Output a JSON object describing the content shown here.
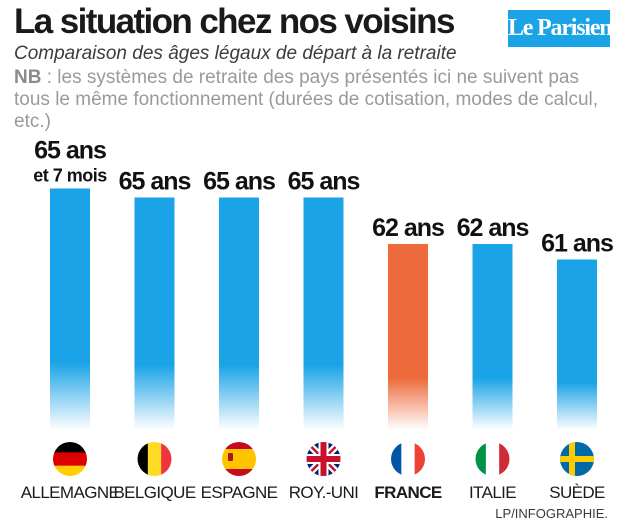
{
  "title": "La situation chez nos voisins",
  "subtitle": "Comparaison des âges légaux de départ à la retraite",
  "note": {
    "prefix": "NB",
    "text": " : les systèmes de retraite des pays présentés ici ne suivent pas tous le même fonctionnement (durées de cotisation, modes de calcul, etc.)"
  },
  "brand": "Le Parisien",
  "credit": "LP/INFOGRAPHIE.",
  "colors": {
    "bar": "#1aa3e6",
    "highlight": "#ee6a3c",
    "logo": "#1aa3e6"
  },
  "chart_data": {
    "type": "bar",
    "categories": [
      "ALLEMAGNE",
      "BELGIQUE",
      "ESPAGNE",
      "ROY.-UNI",
      "FRANCE",
      "ITALIE",
      "SUÈDE"
    ],
    "values": [
      65.583,
      65,
      65,
      65,
      62,
      62,
      61
    ],
    "data_labels": [
      [
        "65 ans",
        "et 7 mois"
      ],
      [
        "65 ans"
      ],
      [
        "65 ans"
      ],
      [
        "65 ans"
      ],
      [
        "62 ans"
      ],
      [
        "62 ans"
      ],
      [
        "61 ans"
      ]
    ],
    "highlight": "FRANCE",
    "flags": [
      "germany-flag",
      "belgium-flag",
      "spain-flag",
      "uk-flag",
      "france-flag",
      "italy-flag",
      "sweden-flag"
    ],
    "title": "",
    "xlabel": "",
    "ylabel": "",
    "ylim": [
      50,
      66
    ],
    "grid": false,
    "legend": "none"
  }
}
